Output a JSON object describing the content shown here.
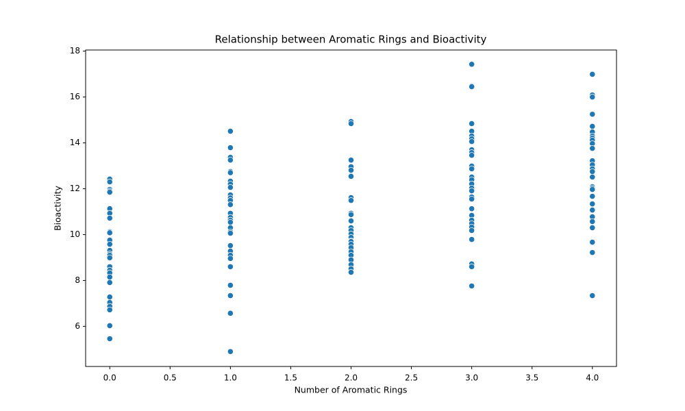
{
  "chart_data": {
    "type": "scatter",
    "title": "Relationship between Aromatic Rings and Bioactivity",
    "x_label": "Number of Aromatic Rings",
    "y_label": "Bioactivity",
    "color": "#1f77b4",
    "xlim": [
      -0.2,
      4.2
    ],
    "ylim": [
      4.25,
      18.05
    ],
    "xticks": [
      {
        "value": 0,
        "label": "0.0"
      },
      {
        "value": 0.5,
        "label": "0.5"
      },
      {
        "value": 1,
        "label": "1.0"
      },
      {
        "value": 1.5,
        "label": "1.5"
      },
      {
        "value": 2,
        "label": "2.0"
      },
      {
        "value": 2.5,
        "label": "2.5"
      },
      {
        "value": 3,
        "label": "3.0"
      },
      {
        "value": 3.5,
        "label": "3.5"
      },
      {
        "value": 4,
        "label": "4.0"
      }
    ],
    "yticks": [
      6,
      8,
      10,
      12,
      14,
      16,
      18
    ],
    "x": [
      0,
      0,
      0,
      0,
      0,
      0,
      0,
      0,
      0,
      0,
      0,
      0,
      0,
      0,
      0,
      0,
      0,
      0,
      0,
      0,
      0,
      0,
      0,
      0,
      0,
      0,
      0,
      1,
      1,
      1,
      1,
      1,
      1,
      1,
      1,
      1,
      1,
      1,
      1,
      1,
      1,
      1,
      1,
      1,
      1,
      1,
      1,
      1,
      1,
      1,
      1,
      1,
      1,
      1,
      1,
      1,
      2,
      2,
      2,
      2,
      2,
      2,
      2,
      2,
      2,
      2,
      2,
      2,
      2,
      2,
      2,
      2,
      2,
      2,
      2,
      2,
      2,
      2,
      2,
      2,
      2,
      2,
      3,
      3,
      3,
      3,
      3,
      3,
      3,
      3,
      3,
      3,
      3,
      3,
      3,
      3,
      3,
      3,
      3,
      3,
      3,
      3,
      3,
      3,
      3,
      3,
      3,
      3,
      3,
      3,
      3,
      3,
      4,
      4,
      4,
      4,
      4,
      4,
      4,
      4,
      4,
      4,
      4,
      4,
      4,
      4,
      4,
      4,
      4,
      4,
      4,
      4,
      4,
      4,
      4,
      4,
      4,
      4,
      4,
      4
    ],
    "y": [
      12.42,
      12.3,
      11.97,
      11.9,
      11.85,
      11.13,
      10.93,
      10.72,
      10.12,
      10.08,
      9.76,
      9.58,
      9.31,
      9.16,
      9.1,
      8.99,
      8.6,
      8.45,
      8.33,
      8.15,
      7.91,
      7.28,
      7.04,
      6.87,
      6.72,
      6.03,
      5.46,
      14.51,
      13.79,
      13.37,
      13.25,
      12.75,
      12.7,
      12.33,
      12.2,
      12.06,
      11.73,
      11.6,
      11.49,
      11.31,
      10.93,
      10.75,
      10.63,
      10.54,
      10.3,
      10.12,
      10.06,
      9.52,
      9.28,
      9.1,
      8.96,
      8.6,
      7.79,
      7.34,
      6.57,
      4.9,
      14.93,
      14.84,
      13.25,
      12.96,
      12.81,
      12.57,
      12.54,
      11.61,
      11.49,
      10.93,
      10.87,
      10.6,
      10.3,
      10.18,
      10.03,
      9.88,
      9.73,
      9.7,
      9.58,
      9.43,
      9.25,
      9.1,
      8.9,
      8.69,
      8.51,
      8.36,
      17.43,
      16.48,
      16.45,
      14.84,
      14.51,
      14.3,
      14.18,
      14.06,
      13.7,
      13.58,
      13.46,
      12.99,
      12.87,
      12.51,
      12.39,
      12.21,
      12.03,
      11.91,
      11.64,
      11.55,
      11.13,
      10.84,
      10.63,
      10.48,
      10.33,
      10.18,
      9.79,
      8.72,
      8.6,
      7.76,
      16.99,
      16.09,
      16.0,
      15.25,
      14.72,
      14.48,
      14.3,
      14.21,
      14.12,
      13.97,
      13.76,
      13.22,
      13.04,
      12.87,
      12.75,
      12.51,
      12.09,
      12.03,
      11.97,
      11.67,
      11.34,
      11.07,
      10.78,
      10.57,
      10.3,
      9.67,
      9.22,
      7.34
    ]
  }
}
